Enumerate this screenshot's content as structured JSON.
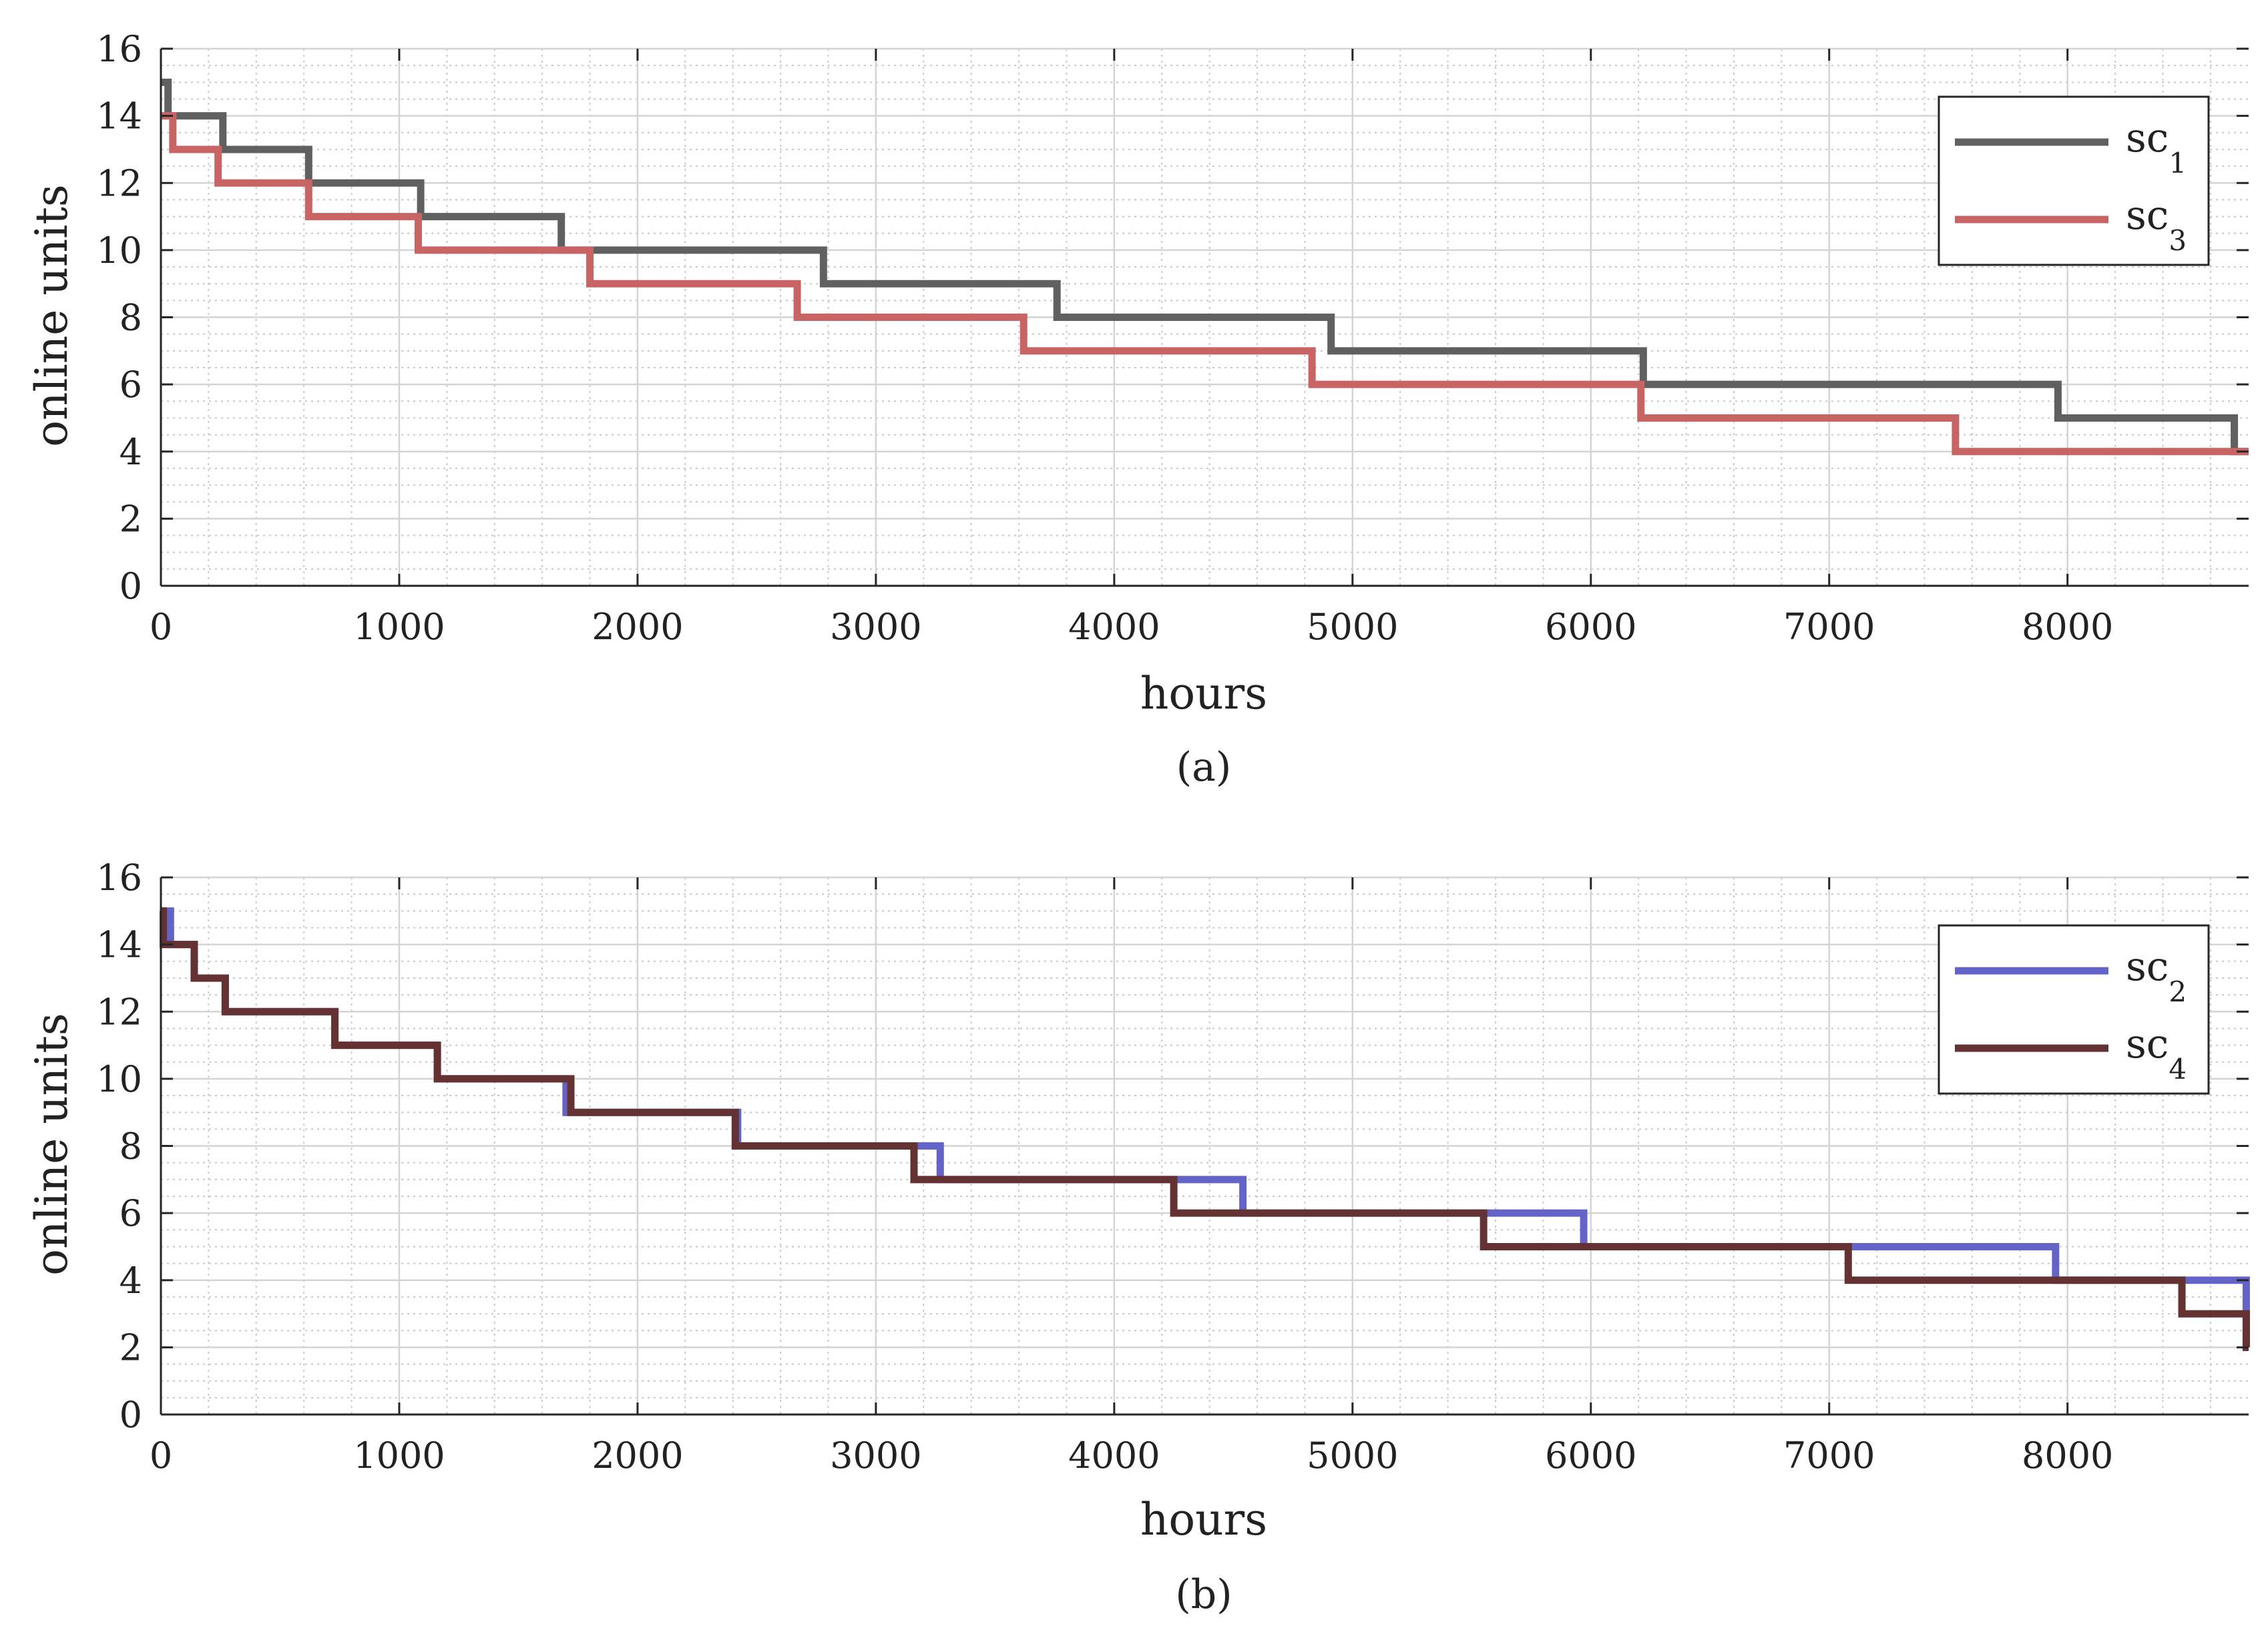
{
  "chart_data": [
    {
      "type": "line",
      "step": true,
      "caption": "(a)",
      "xlabel": "hours",
      "ylabel": "online units",
      "xlim": [
        0,
        8760
      ],
      "ylim": [
        0,
        16
      ],
      "xticks": [
        0,
        1000,
        2000,
        3000,
        4000,
        5000,
        6000,
        7000,
        8000
      ],
      "yticks": [
        0,
        2,
        4,
        6,
        8,
        10,
        12,
        14,
        16
      ],
      "grid": true,
      "minor_grid": true,
      "legend_position": "top-right",
      "series": [
        {
          "name": "sc",
          "subscript": "1",
          "color": "#606060",
          "x": [
            0,
            30,
            260,
            620,
            1090,
            1680,
            2780,
            3760,
            4910,
            6220,
            7960,
            8700
          ],
          "y": [
            15,
            14,
            13,
            12,
            11,
            10,
            9,
            8,
            7,
            6,
            5,
            4
          ]
        },
        {
          "name": "sc",
          "subscript": "3",
          "color": "#c86464",
          "x": [
            0,
            50,
            240,
            620,
            1080,
            1800,
            2670,
            3620,
            4830,
            6210,
            7530,
            8760
          ],
          "y": [
            14,
            13,
            12,
            11,
            10,
            9,
            8,
            7,
            6,
            5,
            4,
            4
          ]
        }
      ]
    },
    {
      "type": "line",
      "step": true,
      "caption": "(b)",
      "xlabel": "hours",
      "ylabel": "online units",
      "xlim": [
        0,
        8760
      ],
      "ylim": [
        0,
        16
      ],
      "xticks": [
        0,
        1000,
        2000,
        3000,
        4000,
        5000,
        6000,
        7000,
        8000
      ],
      "yticks": [
        0,
        2,
        4,
        6,
        8,
        10,
        12,
        14,
        16
      ],
      "grid": true,
      "minor_grid": true,
      "legend_position": "top-right",
      "series": [
        {
          "name": "sc",
          "subscript": "2",
          "color": "#6464c8",
          "x": [
            0,
            40,
            140,
            270,
            730,
            1160,
            1700,
            2420,
            3270,
            4540,
            5970,
            7950,
            8750
          ],
          "y": [
            15,
            14,
            13,
            12,
            11,
            10,
            9,
            8,
            7,
            6,
            5,
            4,
            2
          ]
        },
        {
          "name": "sc",
          "subscript": "4",
          "color": "#643232",
          "x": [
            0,
            10,
            140,
            270,
            730,
            1160,
            1720,
            2410,
            3160,
            4250,
            5550,
            7080,
            8480,
            8750
          ],
          "y": [
            15,
            14,
            13,
            12,
            11,
            10,
            9,
            8,
            7,
            6,
            5,
            4,
            3,
            2
          ]
        }
      ]
    }
  ]
}
